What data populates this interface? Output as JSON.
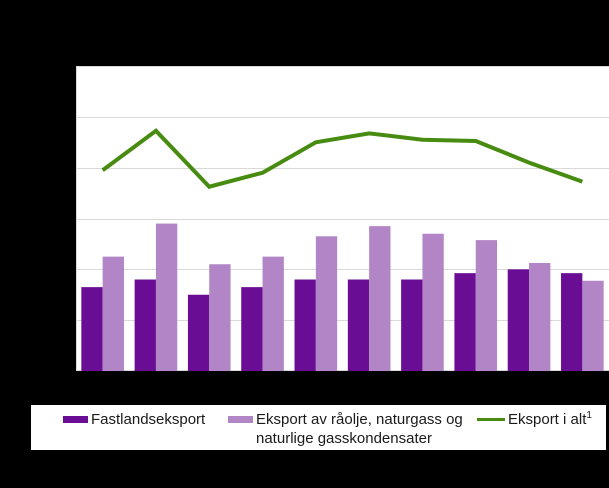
{
  "colors": {
    "background": "#000000",
    "plot_background": "#ffffff",
    "gridline": "#d9d9d9",
    "axis_line": "#d9d9d9",
    "bar_dark_purple": "#6a0d95",
    "bar_light_purple": "#b286c6",
    "line_green": "#478c11",
    "legend_background": "#ffffff",
    "legend_text": "#1a1a1a"
  },
  "legend": {
    "position": "bottom",
    "items": [
      {
        "label": "Fastlandseksport",
        "swatch": "bar",
        "color": "#6a0d95"
      },
      {
        "label": "Eksport av råolje, naturgass og naturlige gasskondensater",
        "swatch": "bar",
        "color": "#b286c6"
      },
      {
        "label": "Eksport i alt",
        "footnote_marker": "1",
        "swatch": "line",
        "color": "#478c11"
      }
    ]
  },
  "chart_data": {
    "type": "bar",
    "subtype": "grouped-bar-with-line",
    "n_groups": 10,
    "categories": [
      "",
      "",
      "",
      "",
      "",
      "",
      "",
      "",
      "",
      ""
    ],
    "x_tick_labels_visible": false,
    "y_tick_labels_visible": false,
    "title_visible": false,
    "grid": "horizontal",
    "legend_position": "bottom",
    "ylim": [
      0,
      120
    ],
    "y_gridlines": [
      0,
      20,
      40,
      60,
      80,
      100,
      120
    ],
    "values_estimated_from_gridlines": true,
    "series": [
      {
        "name": "Fastlandseksport",
        "type": "bar",
        "color": "#6a0d95",
        "values": [
          33,
          36,
          30,
          33,
          36,
          36,
          36,
          38.5,
          40,
          38.5
        ]
      },
      {
        "name": "Eksport av råolje, naturgass og naturlige gasskondensater",
        "type": "bar",
        "color": "#b286c6",
        "values": [
          45,
          58,
          42,
          45,
          53,
          57,
          54,
          51.5,
          42.5,
          35.5
        ]
      },
      {
        "name": "Eksport i alt¹",
        "type": "line",
        "color": "#478c11",
        "line_width": 4,
        "values": [
          79,
          94.5,
          72.5,
          78,
          90,
          93.5,
          91,
          90.5,
          82,
          74.5
        ]
      }
    ]
  }
}
